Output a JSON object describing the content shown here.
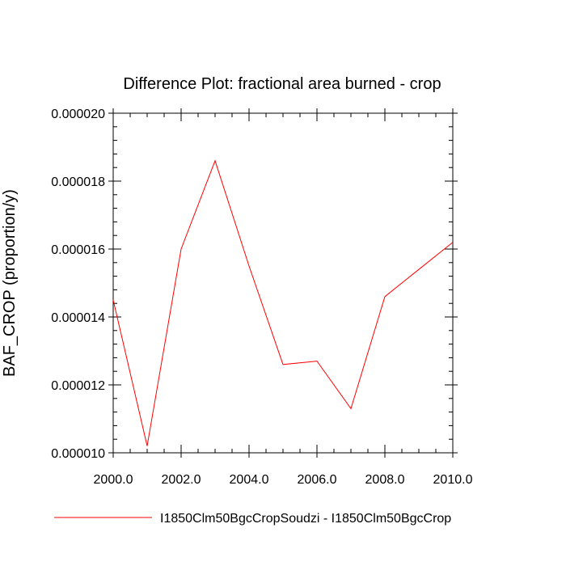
{
  "chart_data": {
    "type": "line",
    "title": "Difference Plot: fractional area burned - crop",
    "xlabel": "",
    "ylabel": "BAF_CROP  (proportion/y)",
    "xlim": [
      2000,
      2010
    ],
    "ylim": [
      1e-05,
      2e-05
    ],
    "x_ticks": [
      "2000.0",
      "2002.0",
      "2004.0",
      "2006.0",
      "2008.0",
      "2010.0"
    ],
    "x_tick_values": [
      2000,
      2002,
      2004,
      2006,
      2008,
      2010
    ],
    "y_ticks": [
      "0.000010",
      "0.000012",
      "0.000014",
      "0.000016",
      "0.000018",
      "0.000020"
    ],
    "y_tick_values": [
      1e-05,
      1.2e-05,
      1.4e-05,
      1.6e-05,
      1.8e-05,
      2e-05
    ],
    "grid": false,
    "legend_position": "bottom",
    "series": [
      {
        "name": "I1850Clm50BgcCropSoudzi - I1850Clm50BgcCrop",
        "color": "#ff0000",
        "x": [
          2000,
          2001,
          2002,
          2003,
          2004,
          2005,
          2006,
          2007,
          2008,
          2009,
          2010
        ],
        "y": [
          1.45e-05,
          1.02e-05,
          1.6e-05,
          1.86e-05,
          1.55e-05,
          1.26e-05,
          1.27e-05,
          1.13e-05,
          1.46e-05,
          1.54e-05,
          1.62e-05
        ]
      }
    ]
  }
}
